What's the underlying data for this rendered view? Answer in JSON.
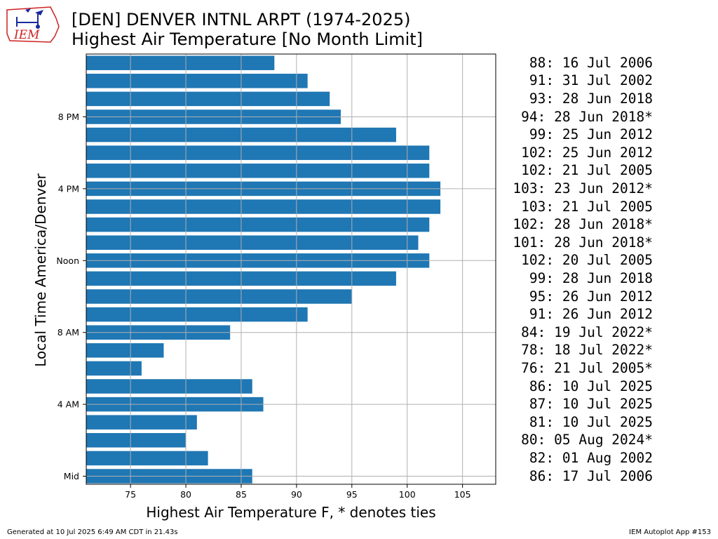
{
  "title_line1": "[DEN] DENVER INTNL ARPT (1974-2025)",
  "title_line2": "Highest Air Temperature [No Month Limit]",
  "logo_text": "IEM",
  "footer_left": "Generated at 10 Jul 2025 6:49 AM CDT in 21.43s",
  "footer_right": "IEM Autoplot App #153",
  "colors": {
    "bar": "#1f77b4",
    "grid": "#b0b0b0"
  },
  "chart_data": {
    "type": "bar",
    "orientation": "horizontal",
    "xlabel": "Highest Air Temperature F, * denotes ties",
    "ylabel": "Local Time America/Denver",
    "xlim": [
      71,
      108
    ],
    "xticks": [
      75,
      80,
      85,
      90,
      95,
      100,
      105
    ],
    "grid": true,
    "hours": [
      0,
      1,
      2,
      3,
      4,
      5,
      6,
      7,
      8,
      9,
      10,
      11,
      12,
      13,
      14,
      15,
      16,
      17,
      18,
      19,
      20,
      21,
      22,
      23
    ],
    "yticks": [
      {
        "hour": 0,
        "label": "Mid"
      },
      {
        "hour": 4,
        "label": "4 AM"
      },
      {
        "hour": 8,
        "label": "8 AM"
      },
      {
        "hour": 12,
        "label": "Noon"
      },
      {
        "hour": 16,
        "label": "4 PM"
      },
      {
        "hour": 20,
        "label": "8 PM"
      }
    ],
    "values": [
      86,
      82,
      80,
      81,
      87,
      86,
      76,
      78,
      84,
      91,
      95,
      99,
      102,
      101,
      102,
      103,
      103,
      102,
      102,
      99,
      94,
      93,
      91,
      88
    ],
    "annotations": [
      "86: 17 Jul 2006",
      "82: 01 Aug 2002",
      "80: 05 Aug 2024*",
      "81: 10 Jul 2025",
      "87: 10 Jul 2025",
      "86: 10 Jul 2025",
      "76: 21 Jul 2005*",
      "78: 18 Jul 2022*",
      "84: 19 Jul 2022*",
      "91: 26 Jun 2012",
      "95: 26 Jun 2012",
      "99: 28 Jun 2018",
      "102: 20 Jul 2005",
      "101: 28 Jun 2018*",
      "102: 28 Jun 2018*",
      "103: 21 Jul 2005",
      "103: 23 Jun 2012*",
      "102: 21 Jul 2005",
      "102: 25 Jun 2012",
      "99: 25 Jun 2012",
      "94: 28 Jun 2018*",
      "93: 28 Jun 2018",
      "91: 31 Jul 2002",
      "88: 16 Jul 2006"
    ]
  }
}
